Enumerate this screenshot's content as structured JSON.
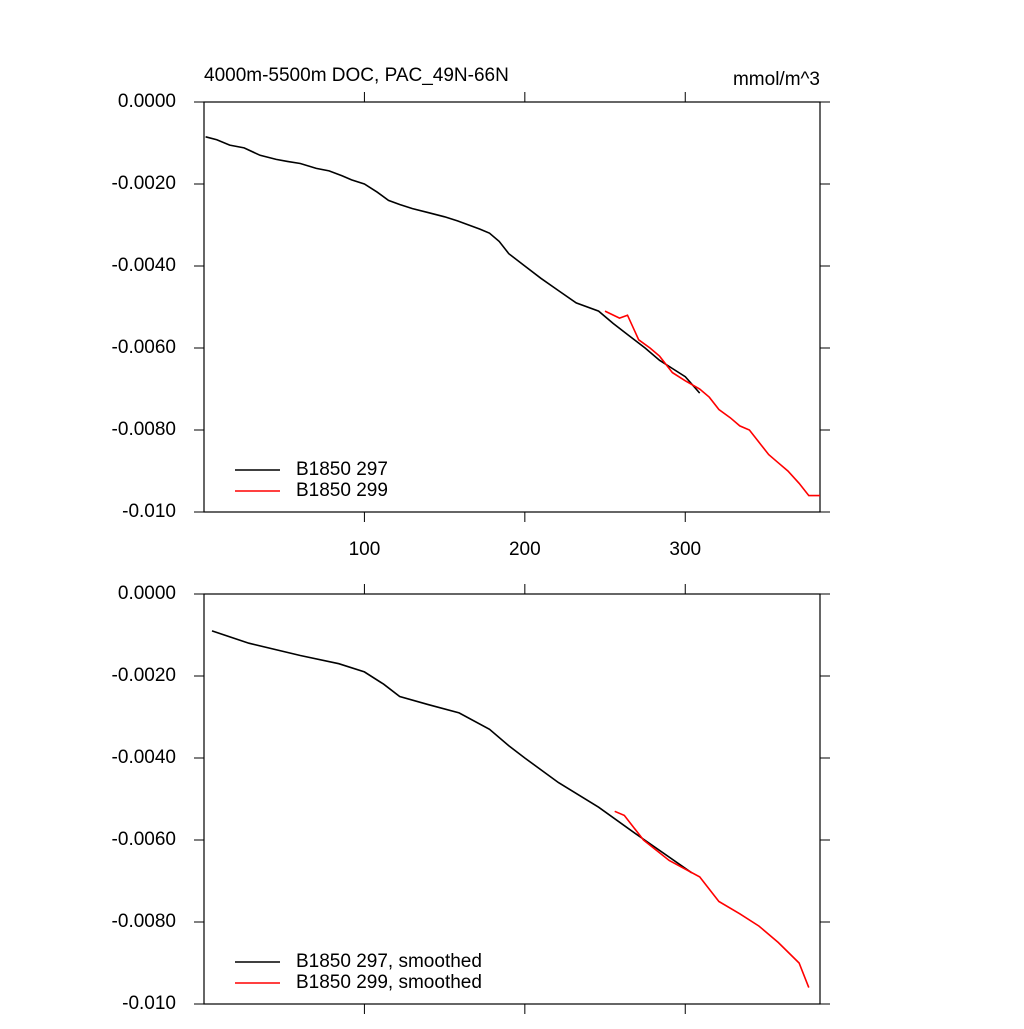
{
  "chart_data": [
    {
      "type": "line",
      "title": "4000m-5500m DOC, PAC_49N-66N",
      "units": "mmol/m^3",
      "xlim": [
        0,
        384
      ],
      "xticks": [
        100,
        200,
        300
      ],
      "xtick_labels": true,
      "ylim": [
        -0.01,
        0
      ],
      "yticks": [
        {
          "value": 0,
          "label": "0.0000"
        },
        {
          "value": -0.002,
          "label": "-0.0020"
        },
        {
          "value": -0.004,
          "label": "-0.0040"
        },
        {
          "value": -0.006,
          "label": "-0.0060"
        },
        {
          "value": -0.008,
          "label": "-0.0080"
        },
        {
          "value": -0.01,
          "label": "-0.010"
        }
      ],
      "legend": "bottom-left",
      "series": [
        {
          "name": "B1850 297",
          "color": "#000000",
          "x": [
            1,
            8,
            16,
            25,
            35,
            45,
            52,
            60,
            70,
            78,
            86,
            92,
            100,
            108,
            115,
            122,
            130,
            140,
            150,
            158,
            165,
            172,
            178,
            184,
            190,
            200,
            210,
            221,
            232,
            246,
            255,
            265,
            275,
            284,
            292,
            300,
            309
          ],
          "values": [
            -0.00085,
            -0.00092,
            -0.00105,
            -0.00112,
            -0.0013,
            -0.0014,
            -0.00145,
            -0.0015,
            -0.00162,
            -0.00168,
            -0.0018,
            -0.0019,
            -0.002,
            -0.0022,
            -0.0024,
            -0.0025,
            -0.0026,
            -0.0027,
            -0.0028,
            -0.0029,
            -0.003,
            -0.0031,
            -0.0032,
            -0.0034,
            -0.0037,
            -0.004,
            -0.0043,
            -0.0046,
            -0.0049,
            -0.0051,
            -0.0054,
            -0.0057,
            -0.006,
            -0.0063,
            -0.0065,
            -0.0067,
            -0.0071
          ]
        },
        {
          "name": "B1850 299",
          "color": "#ff0000",
          "x": [
            250,
            259,
            264,
            271,
            278,
            284,
            292,
            300,
            309,
            315,
            321,
            328,
            334,
            340,
            346,
            352,
            358,
            364,
            371,
            377,
            384
          ],
          "values": [
            -0.0051,
            -0.00527,
            -0.0052,
            -0.0058,
            -0.006,
            -0.0062,
            -0.0066,
            -0.0068,
            -0.007,
            -0.0072,
            -0.0075,
            -0.0077,
            -0.0079,
            -0.008,
            -0.0083,
            -0.0086,
            -0.0088,
            -0.009,
            -0.0093,
            -0.0096,
            -0.0096
          ]
        }
      ]
    },
    {
      "type": "line",
      "xlim": [
        0,
        384
      ],
      "xticks": [
        100,
        200,
        300
      ],
      "xtick_labels": false,
      "ylim": [
        -0.01,
        0
      ],
      "yticks": [
        {
          "value": 0,
          "label": "0.0000"
        },
        {
          "value": -0.002,
          "label": "-0.0020"
        },
        {
          "value": -0.004,
          "label": "-0.0040"
        },
        {
          "value": -0.006,
          "label": "-0.0060"
        },
        {
          "value": -0.008,
          "label": "-0.0080"
        },
        {
          "value": -0.01,
          "label": "-0.010"
        }
      ],
      "legend": "bottom-left",
      "series": [
        {
          "name": "B1850 297, smoothed",
          "color": "#000000",
          "x": [
            5,
            28,
            60,
            84,
            100,
            112,
            122,
            140,
            159,
            178,
            190,
            200,
            221,
            246,
            271,
            304
          ],
          "values": [
            -0.0009,
            -0.0012,
            -0.0015,
            -0.0017,
            -0.0019,
            -0.0022,
            -0.0025,
            -0.0027,
            -0.0029,
            -0.0033,
            -0.0037,
            -0.004,
            -0.0046,
            -0.0052,
            -0.0059,
            -0.0068
          ]
        },
        {
          "name": "B1850 299, smoothed",
          "color": "#ff0000",
          "x": [
            256,
            262,
            274,
            290,
            309,
            321,
            334,
            346,
            358,
            371,
            377
          ],
          "values": [
            -0.0053,
            -0.0054,
            -0.006,
            -0.0065,
            -0.0069,
            -0.0075,
            -0.0078,
            -0.0081,
            -0.0085,
            -0.009,
            -0.0096
          ]
        }
      ]
    }
  ]
}
